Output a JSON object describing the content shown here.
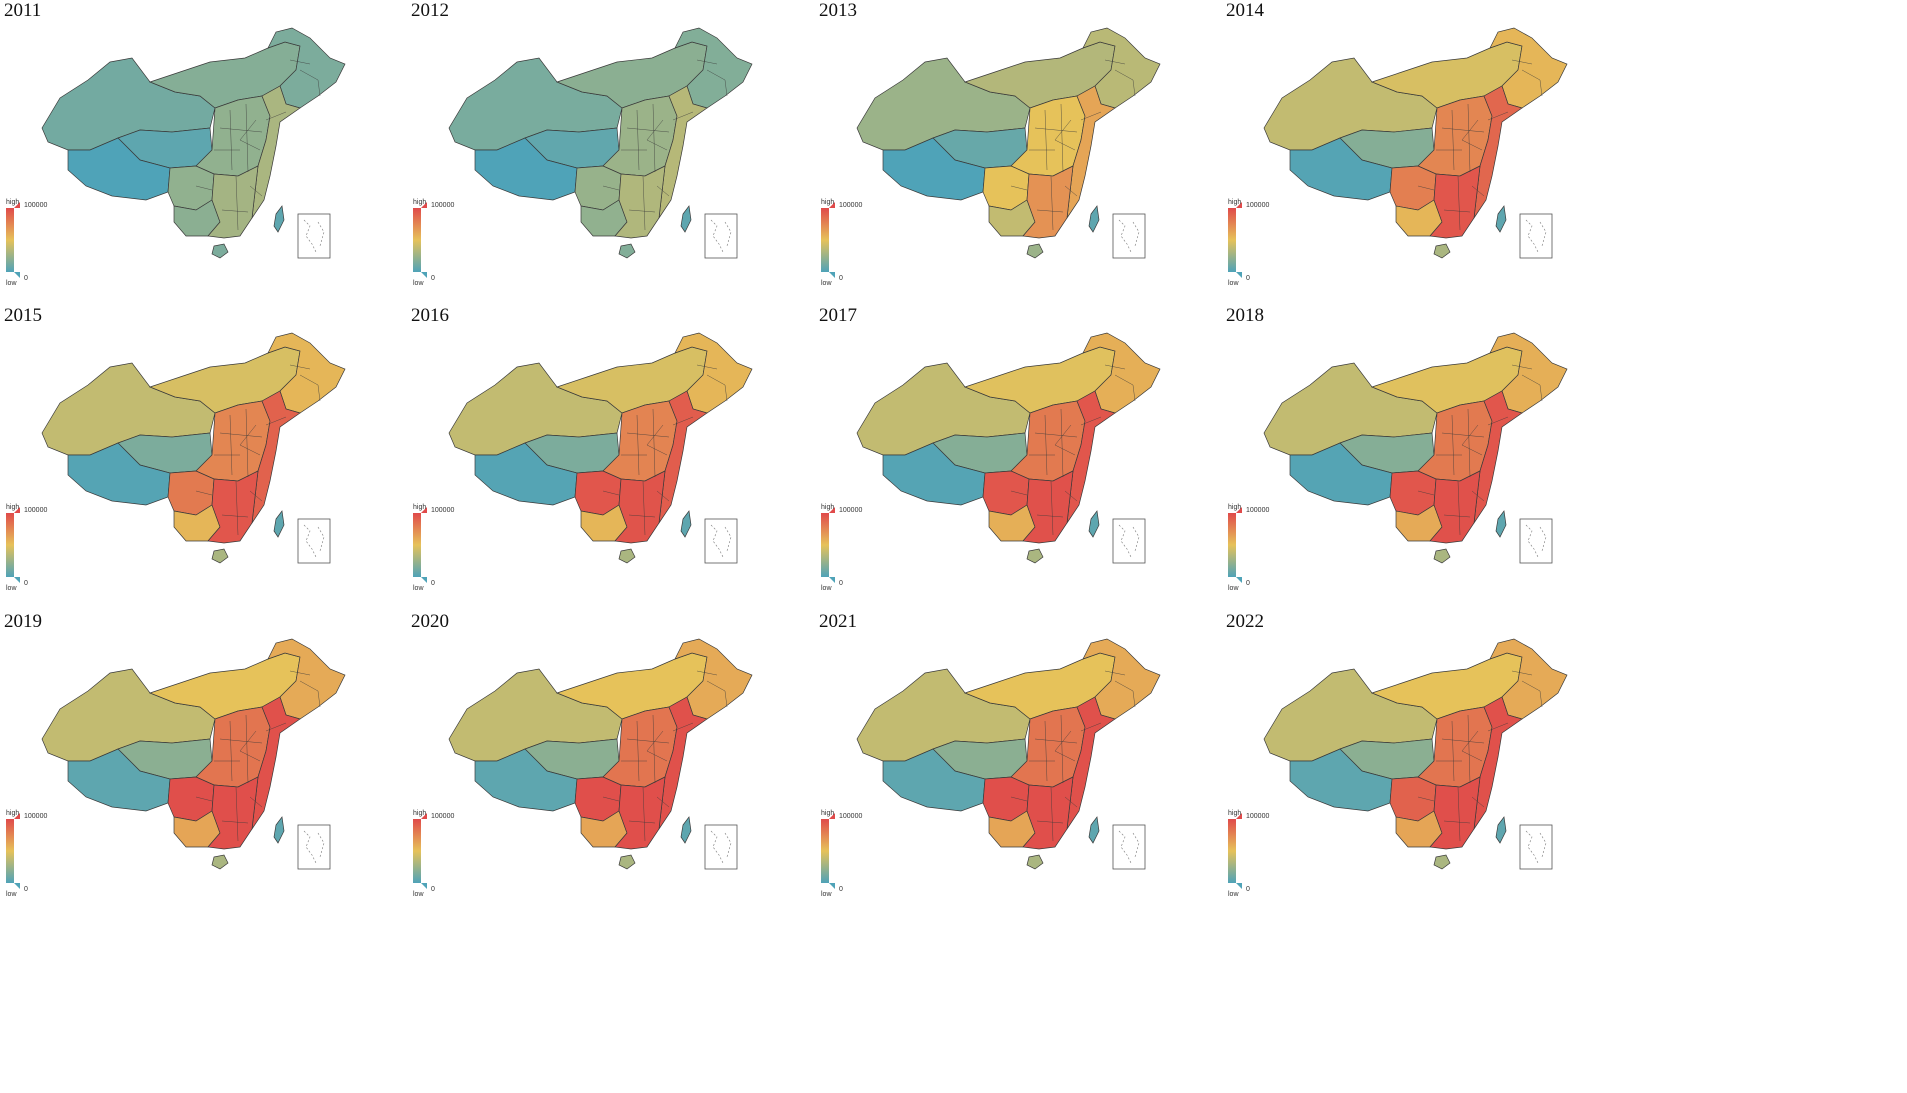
{
  "legend": {
    "high_label": "high",
    "low_label": "low",
    "max_value": "100000",
    "min_value": "0"
  },
  "colors": {
    "low": "#4fa3b8",
    "mid": "#e6c25a",
    "high": "#e04a4a",
    "border": "#3a3a3a"
  },
  "panels": [
    {
      "year": "2011",
      "level": {
        "west": 0.12,
        "tibet": 0.0,
        "qinghai": 0.05,
        "north": 0.18,
        "northeast": 0.15,
        "center": 0.22,
        "east": 0.3,
        "south": 0.28,
        "southwest": 0.2,
        "sichuan": 0.22,
        "hainan": 0.15,
        "taiwan": 0.05
      }
    },
    {
      "year": "2012",
      "level": {
        "west": 0.14,
        "tibet": 0.0,
        "qinghai": 0.06,
        "north": 0.2,
        "northeast": 0.17,
        "center": 0.25,
        "east": 0.34,
        "south": 0.32,
        "southwest": 0.22,
        "sichuan": 0.24,
        "hainan": 0.17,
        "taiwan": 0.05
      }
    },
    {
      "year": "2013",
      "level": {
        "west": 0.25,
        "tibet": 0.0,
        "qinghai": 0.08,
        "north": 0.33,
        "northeast": 0.35,
        "center": 0.5,
        "east": 0.62,
        "south": 0.7,
        "southwest": 0.38,
        "sichuan": 0.5,
        "hainan": 0.25,
        "taiwan": 0.05
      }
    },
    {
      "year": "2014",
      "level": {
        "west": 0.38,
        "tibet": 0.02,
        "qinghai": 0.18,
        "north": 0.45,
        "northeast": 0.55,
        "center": 0.75,
        "east": 0.88,
        "south": 0.95,
        "southwest": 0.55,
        "sichuan": 0.78,
        "hainan": 0.3,
        "taiwan": 0.05
      }
    },
    {
      "year": "2015",
      "level": {
        "west": 0.38,
        "tibet": 0.02,
        "qinghai": 0.15,
        "north": 0.45,
        "northeast": 0.55,
        "center": 0.75,
        "east": 0.9,
        "south": 0.95,
        "southwest": 0.55,
        "sichuan": 0.8,
        "hainan": 0.3,
        "taiwan": 0.05
      }
    },
    {
      "year": "2016",
      "level": {
        "west": 0.38,
        "tibet": 0.02,
        "qinghai": 0.15,
        "north": 0.45,
        "northeast": 0.55,
        "center": 0.76,
        "east": 0.92,
        "south": 0.96,
        "southwest": 0.55,
        "sichuan": 0.95,
        "hainan": 0.3,
        "taiwan": 0.05
      }
    },
    {
      "year": "2017",
      "level": {
        "west": 0.38,
        "tibet": 0.02,
        "qinghai": 0.18,
        "north": 0.48,
        "northeast": 0.58,
        "center": 0.8,
        "east": 0.95,
        "south": 0.97,
        "southwest": 0.58,
        "sichuan": 0.95,
        "hainan": 0.3,
        "taiwan": 0.05
      }
    },
    {
      "year": "2018",
      "level": {
        "west": 0.38,
        "tibet": 0.02,
        "qinghai": 0.18,
        "north": 0.48,
        "northeast": 0.58,
        "center": 0.8,
        "east": 0.95,
        "south": 0.97,
        "southwest": 0.6,
        "sichuan": 0.95,
        "hainan": 0.3,
        "taiwan": 0.05
      }
    },
    {
      "year": "2019",
      "level": {
        "west": 0.38,
        "tibet": 0.05,
        "qinghai": 0.2,
        "north": 0.5,
        "northeast": 0.6,
        "center": 0.82,
        "east": 0.97,
        "south": 0.98,
        "southwest": 0.62,
        "sichuan": 0.98,
        "hainan": 0.3,
        "taiwan": 0.05
      }
    },
    {
      "year": "2020",
      "level": {
        "west": 0.38,
        "tibet": 0.05,
        "qinghai": 0.2,
        "north": 0.5,
        "northeast": 0.6,
        "center": 0.82,
        "east": 0.97,
        "south": 0.98,
        "southwest": 0.62,
        "sichuan": 0.98,
        "hainan": 0.3,
        "taiwan": 0.05
      }
    },
    {
      "year": "2021",
      "level": {
        "west": 0.38,
        "tibet": 0.05,
        "qinghai": 0.2,
        "north": 0.5,
        "northeast": 0.6,
        "center": 0.82,
        "east": 0.97,
        "south": 0.98,
        "southwest": 0.62,
        "sichuan": 0.98,
        "hainan": 0.3,
        "taiwan": 0.05
      }
    },
    {
      "year": "2022",
      "level": {
        "west": 0.38,
        "tibet": 0.05,
        "qinghai": 0.2,
        "north": 0.5,
        "northeast": 0.6,
        "center": 0.82,
        "east": 0.97,
        "south": 0.98,
        "southwest": 0.62,
        "sichuan": 0.9,
        "hainan": 0.3,
        "taiwan": 0.05
      }
    }
  ]
}
